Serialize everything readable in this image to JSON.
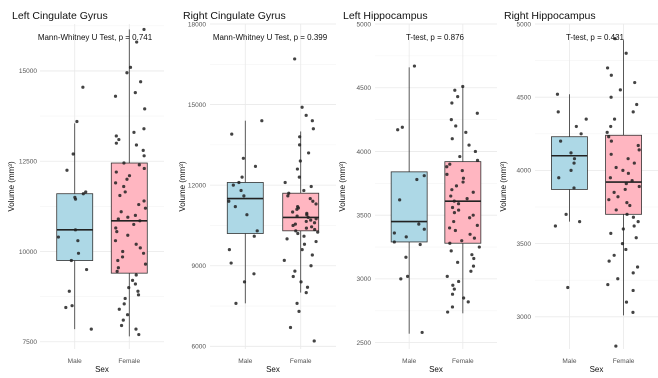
{
  "chart_data": [
    {
      "type": "box",
      "title": "Left Cingulate Gyrus",
      "subtitle": "Mann-Whitney U Test, p = 0.741",
      "xlabel": "Sex",
      "ylabel": "Volume (mm³)",
      "ylim": [
        7300,
        16300
      ],
      "yticks": [
        7500,
        10000,
        12500,
        15000
      ],
      "categories": [
        "Male",
        "Female"
      ],
      "box_colors": [
        "#add8e6",
        "#ffb6c1"
      ],
      "boxes": [
        {
          "category": "Male",
          "min": 7850,
          "q1": 9750,
          "median": 10600,
          "q3": 11600,
          "max": 13550
        },
        {
          "category": "Female",
          "min": 7650,
          "q1": 9400,
          "median": 10850,
          "q3": 12450,
          "max": 16150
        }
      ],
      "points": [
        {
          "category": "Male",
          "values": [
            14550,
            13600,
            12700,
            12250,
            11650,
            11600,
            11500,
            11450,
            10600,
            10400,
            10300,
            9950,
            9750,
            9500,
            8900,
            8500,
            8450,
            7850
          ]
        },
        {
          "category": "Female",
          "values": [
            16150,
            15800,
            15100,
            14950,
            14700,
            14400,
            14300,
            13950,
            13400,
            13300,
            13200,
            13100,
            13000,
            12950,
            12800,
            12650,
            12450,
            12400,
            12300,
            12200,
            12100,
            12000,
            11900,
            11800,
            11650,
            11550,
            11400,
            11300,
            11200,
            11100,
            11000,
            10950,
            10900,
            10850,
            10750,
            10650,
            10550,
            10450,
            10300,
            10200,
            10100,
            10000,
            9950,
            9850,
            9750,
            9650,
            9550,
            9450,
            9350,
            9200,
            9100,
            9000,
            8900,
            8800,
            8700,
            8550,
            8400,
            8250,
            8100,
            7950,
            7850,
            7700
          ]
        }
      ]
    },
    {
      "type": "box",
      "title": "Right Cingulate Gyrus",
      "subtitle": "Mann-Whitney U Test, p = 0.399",
      "xlabel": "Sex",
      "ylabel": "Volume (mm³)",
      "ylim": [
        5900,
        18000
      ],
      "yticks": [
        6000,
        9000,
        12000,
        15000,
        18000
      ],
      "categories": [
        "Male",
        "Female"
      ],
      "box_colors": [
        "#add8e6",
        "#ffb6c1"
      ],
      "boxes": [
        {
          "category": "Male",
          "min": 7600,
          "q1": 10200,
          "median": 11500,
          "q3": 12100,
          "max": 14400
        },
        {
          "category": "Female",
          "min": 8000,
          "q1": 10300,
          "median": 10800,
          "q3": 11700,
          "max": 14000
        }
      ],
      "points": [
        {
          "category": "Male",
          "values": [
            14400,
            13900,
            13000,
            12700,
            12300,
            12100,
            12000,
            11800,
            11600,
            11400,
            11200,
            10900,
            10300,
            10100,
            9600,
            9100,
            8700,
            8400,
            7600
          ]
        },
        {
          "category": "Female",
          "values": [
            16700,
            14900,
            14600,
            14400,
            14100,
            13800,
            13500,
            13200,
            12900,
            12600,
            12300,
            12100,
            11950,
            11800,
            11700,
            11600,
            11500,
            11400,
            11300,
            11200,
            11150,
            11100,
            11000,
            10950,
            10900,
            10850,
            10800,
            10750,
            10700,
            10650,
            10600,
            10550,
            10500,
            10450,
            10400,
            10350,
            10300,
            10250,
            10200,
            10100,
            10000,
            9900,
            9800,
            9600,
            9400,
            9200,
            9000,
            8800,
            8600,
            8400,
            8200,
            8000,
            7600,
            7300,
            6700,
            6200
          ]
        }
      ]
    },
    {
      "type": "box",
      "title": "Left Hippocampus",
      "subtitle": "T-test, p = 0.876",
      "xlabel": "Sex",
      "ylabel": "Volume (mm³)",
      "ylim": [
        2450,
        5000
      ],
      "yticks": [
        2500,
        3000,
        3500,
        4000,
        4500,
        5000
      ],
      "categories": [
        "Male",
        "Female"
      ],
      "box_colors": [
        "#add8e6",
        "#ffb6c1"
      ],
      "boxes": [
        {
          "category": "Male",
          "min": 2570,
          "q1": 3290,
          "median": 3450,
          "q3": 3840,
          "max": 4660
        },
        {
          "category": "Female",
          "min": 2730,
          "q1": 3280,
          "median": 3610,
          "q3": 3920,
          "max": 4510
        }
      ],
      "points": [
        {
          "category": "Male",
          "values": [
            4670,
            4190,
            4170,
            3810,
            3780,
            3620,
            3430,
            3390,
            3360,
            3330,
            3290,
            3270,
            3170,
            3020,
            3000,
            2580
          ]
        },
        {
          "category": "Female",
          "values": [
            4510,
            4480,
            4430,
            4380,
            4300,
            4250,
            4200,
            4150,
            4100,
            4050,
            4000,
            3960,
            3930,
            3900,
            3880,
            3850,
            3820,
            3790,
            3760,
            3730,
            3700,
            3680,
            3650,
            3630,
            3610,
            3590,
            3560,
            3540,
            3520,
            3500,
            3480,
            3450,
            3420,
            3400,
            3380,
            3350,
            3320,
            3300,
            3280,
            3250,
            3220,
            3190,
            3160,
            3130,
            3100,
            3060,
            3020,
            2980,
            2950,
            2920,
            2880,
            2850,
            2820,
            2780,
            2740
          ]
        }
      ]
    },
    {
      "type": "box",
      "title": "Right Hippocampus",
      "subtitle": "T-test, p = 0.431",
      "xlabel": "Sex",
      "ylabel": "Volume (mm³)",
      "ylim": [
        2780,
        5000
      ],
      "yticks": [
        3000,
        3500,
        4000,
        4500,
        5000
      ],
      "categories": [
        "Male",
        "Female"
      ],
      "box_colors": [
        "#add8e6",
        "#ffb6c1"
      ],
      "boxes": [
        {
          "category": "Male",
          "min": 3650,
          "q1": 3870,
          "median": 4100,
          "q3": 4230,
          "max": 4520
        },
        {
          "category": "Female",
          "min": 3010,
          "q1": 3700,
          "median": 3920,
          "q3": 4240,
          "max": 4890
        }
      ],
      "points": [
        {
          "category": "Male",
          "values": [
            4520,
            4400,
            4350,
            4300,
            4250,
            4200,
            4120,
            4080,
            4050,
            4000,
            3950,
            3880,
            3700,
            3650,
            3620,
            3200
          ]
        },
        {
          "category": "Female",
          "values": [
            4900,
            4800,
            4700,
            4650,
            4600,
            4550,
            4500,
            4450,
            4400,
            4350,
            4300,
            4260,
            4230,
            4200,
            4170,
            4140,
            4110,
            4080,
            4050,
            4020,
            4000,
            3980,
            3950,
            3930,
            3910,
            3890,
            3870,
            3850,
            3820,
            3800,
            3780,
            3760,
            3730,
            3700,
            3680,
            3650,
            3620,
            3600,
            3570,
            3540,
            3500,
            3460,
            3420,
            3380,
            3340,
            3300,
            3260,
            3220,
            3180,
            3100,
            3030,
            2800
          ]
        }
      ]
    }
  ]
}
